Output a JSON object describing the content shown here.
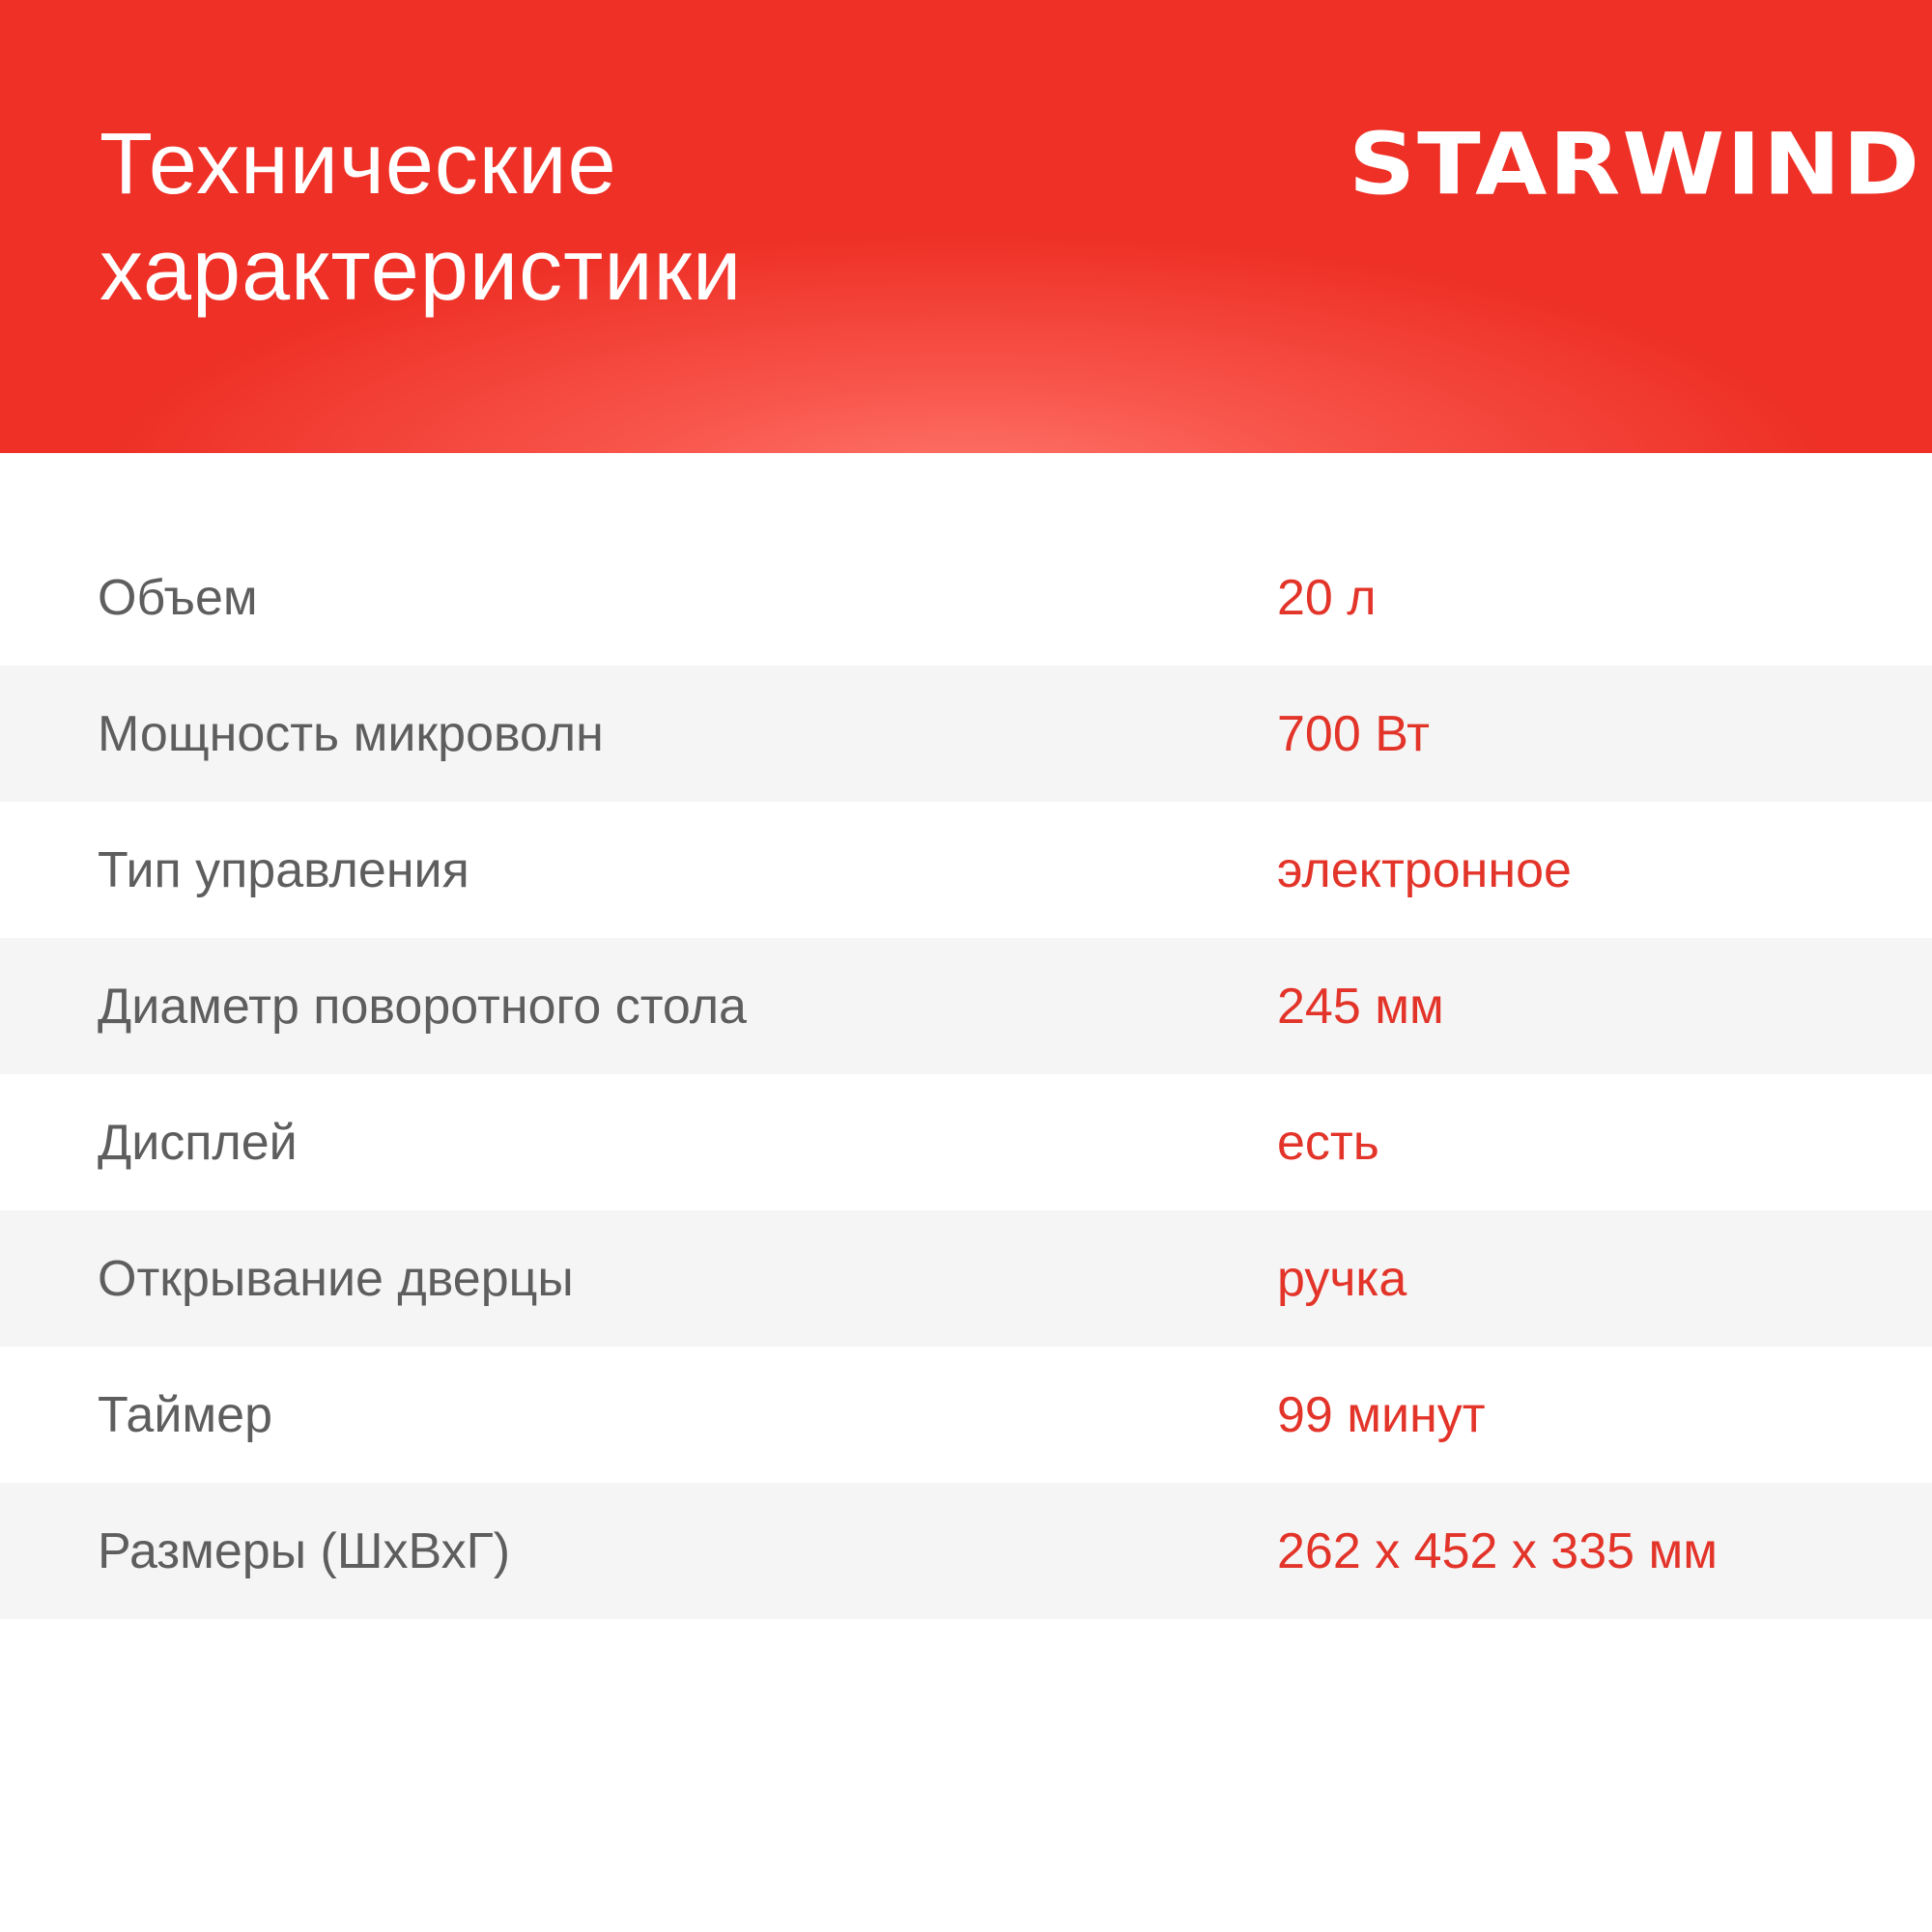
{
  "header": {
    "title_line1": "Технические",
    "title_line2": "характеристики",
    "logo": "STARWIND"
  },
  "colors": {
    "accent": "#ee3026",
    "label": "#5e5e5e",
    "value": "#e3342a",
    "stripe": "#f5f5f5"
  },
  "specs": [
    {
      "label": "Объем",
      "value": "20 л"
    },
    {
      "label": "Мощность микроволн",
      "value": "700 Вт"
    },
    {
      "label": "Тип управления",
      "value": "электронное"
    },
    {
      "label": "Диаметр поворотного стола",
      "value": "245 мм"
    },
    {
      "label": "Дисплей",
      "value": "есть"
    },
    {
      "label": "Открывание дверцы",
      "value": "ручка"
    },
    {
      "label": "Таймер",
      "value": "99 минут"
    },
    {
      "label": "Размеры (ШхВхГ)",
      "value": "262 x 452 x 335 мм"
    }
  ]
}
